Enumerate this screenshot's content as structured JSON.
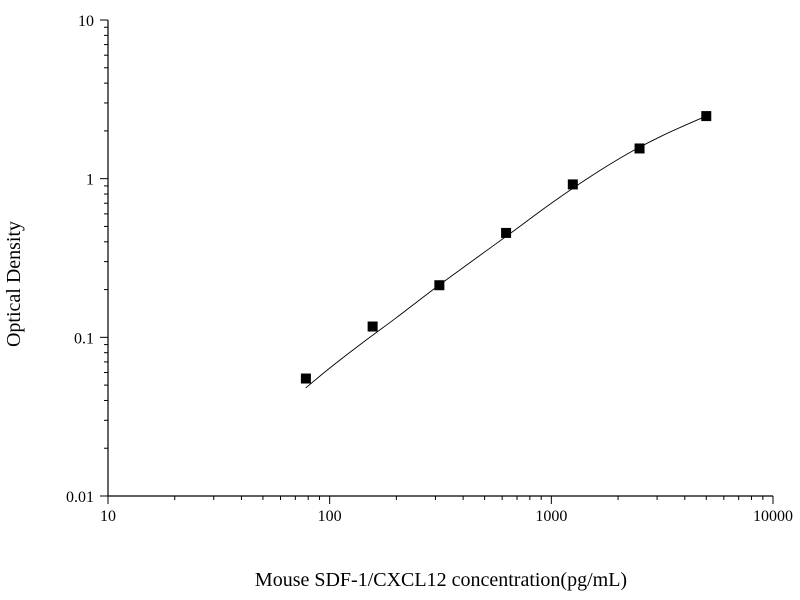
{
  "chart_data": {
    "type": "scatter",
    "title": "",
    "xlabel": "Mouse SDF-1/CXCL12 concentration(pg/mL)",
    "ylabel": "Optical Density",
    "xscale": "log",
    "yscale": "log",
    "xlim": [
      10,
      10000
    ],
    "ylim": [
      0.01,
      10
    ],
    "x_ticks": [
      10,
      100,
      1000,
      10000
    ],
    "x_tick_labels": [
      "10",
      "100",
      "1000",
      "10000"
    ],
    "y_ticks": [
      0.01,
      0.1,
      1,
      10
    ],
    "y_tick_labels": [
      "0.01",
      "0.1",
      "1",
      "10"
    ],
    "grid": false,
    "legend": false,
    "series": [
      {
        "marker": "square",
        "color": "#000000",
        "x": [
          78.125,
          156.25,
          312.5,
          625,
          1250,
          2500,
          5000
        ],
        "y": [
          0.055,
          0.117,
          0.213,
          0.455,
          0.92,
          1.55,
          2.48
        ]
      }
    ],
    "fit_curve": {
      "color": "#000000",
      "x": [
        78,
        100,
        140,
        200,
        300,
        450,
        650,
        1000,
        1500,
        2200,
        3200,
        5000
      ],
      "y": [
        0.048,
        0.064,
        0.092,
        0.133,
        0.205,
        0.31,
        0.45,
        0.7,
        1.03,
        1.43,
        1.88,
        2.48
      ]
    }
  }
}
